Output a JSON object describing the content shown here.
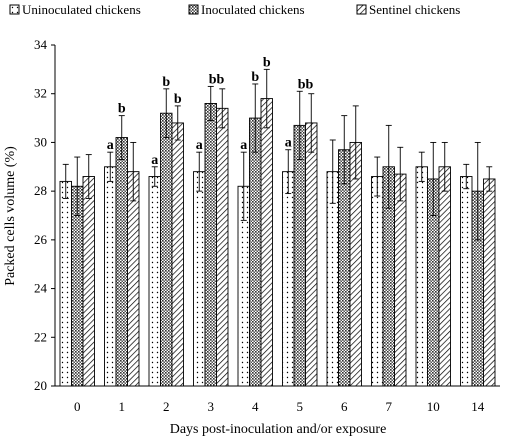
{
  "chart_data": {
    "type": "bar",
    "xlabel": "Days post-inoculation and/or exposure",
    "ylabel": "Packed cells volume (%)",
    "ylim": [
      20,
      34
    ],
    "yticks": [
      "20",
      "22",
      "24",
      "26",
      "28",
      "30",
      "32",
      "34"
    ],
    "categories": [
      "0",
      "1",
      "2",
      "3",
      "4",
      "5",
      "6",
      "7",
      "10",
      "14"
    ],
    "grid": false,
    "legend_position": "top",
    "series": [
      {
        "name": "Uninoculated chickens",
        "pattern": "dots",
        "values": [
          28.4,
          29.0,
          28.6,
          28.8,
          28.2,
          28.8,
          28.8,
          28.6,
          29.0,
          28.6
        ],
        "errors": [
          0.7,
          0.6,
          0.4,
          0.8,
          1.4,
          0.9,
          1.3,
          0.8,
          0.6,
          0.5
        ],
        "labels": [
          "",
          "a",
          "a",
          "a",
          "a",
          "a",
          "",
          "",
          "",
          ""
        ]
      },
      {
        "name": "Inoculated chickens",
        "pattern": "crosshatch",
        "values": [
          28.2,
          30.2,
          31.2,
          31.6,
          31.0,
          30.7,
          29.7,
          29.0,
          28.5,
          28.0
        ],
        "errors": [
          1.2,
          0.9,
          1.0,
          0.7,
          1.4,
          1.4,
          1.4,
          1.7,
          1.5,
          2.0
        ],
        "labels": [
          "",
          "b",
          "b",
          "bb",
          "b",
          "bb",
          "",
          "",
          "",
          ""
        ]
      },
      {
        "name": "Sentinel chickens",
        "pattern": "diagonal",
        "values": [
          28.6,
          28.8,
          30.8,
          31.4,
          31.8,
          30.8,
          30.0,
          28.7,
          29.0,
          28.5
        ],
        "errors": [
          0.9,
          1.2,
          0.7,
          0.8,
          1.2,
          1.2,
          1.5,
          1.1,
          1.0,
          0.5
        ],
        "labels": [
          "",
          "",
          "b",
          "",
          "b",
          "",
          "",
          "",
          "",
          ""
        ]
      }
    ]
  },
  "colors": {
    "bar_fill": "#ffffff",
    "stroke": "#000000"
  }
}
